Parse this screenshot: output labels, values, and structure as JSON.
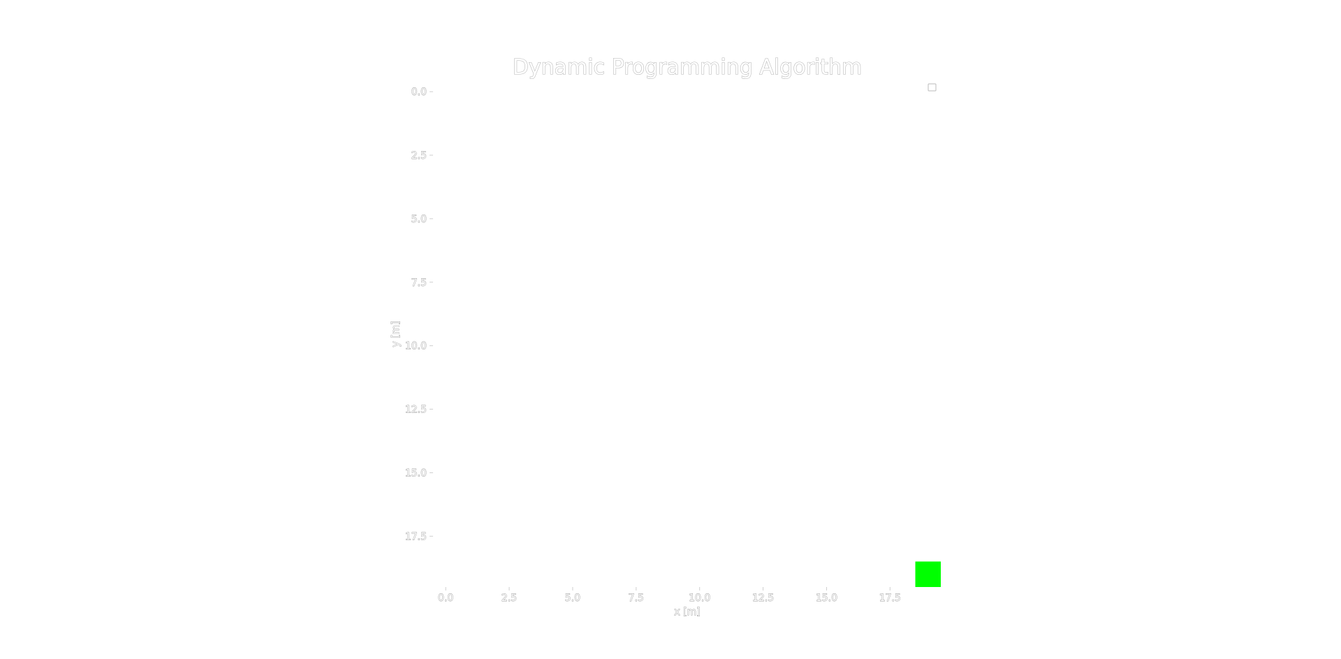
{
  "chart_data": {
    "type": "heatmap",
    "title": "Dynamic Programming Algorithm",
    "xlabel": "x [m]",
    "ylabel": "y [m]",
    "xlim": [
      -0.5,
      19.5
    ],
    "ylim": [
      19.5,
      -0.5
    ],
    "y_inverted": true,
    "x_ticks": [
      "0.0",
      "2.5",
      "5.0",
      "7.5",
      "10.0",
      "12.5",
      "15.0",
      "17.5"
    ],
    "y_ticks": [
      "0.0",
      "2.5",
      "5.0",
      "7.5",
      "10.0",
      "12.5",
      "15.0",
      "17.5"
    ],
    "x_tick_values": [
      0,
      2.5,
      5,
      7.5,
      10,
      12.5,
      15,
      17.5
    ],
    "y_tick_values": [
      0,
      2.5,
      5,
      7.5,
      10,
      12.5,
      15,
      17.5
    ],
    "grid": false,
    "legend": {
      "placement": "top-right",
      "entries": []
    },
    "background_color": "#ffffff",
    "highlighted_cells": [
      {
        "x": 19,
        "y": 19,
        "color": "#00ff00"
      }
    ]
  }
}
